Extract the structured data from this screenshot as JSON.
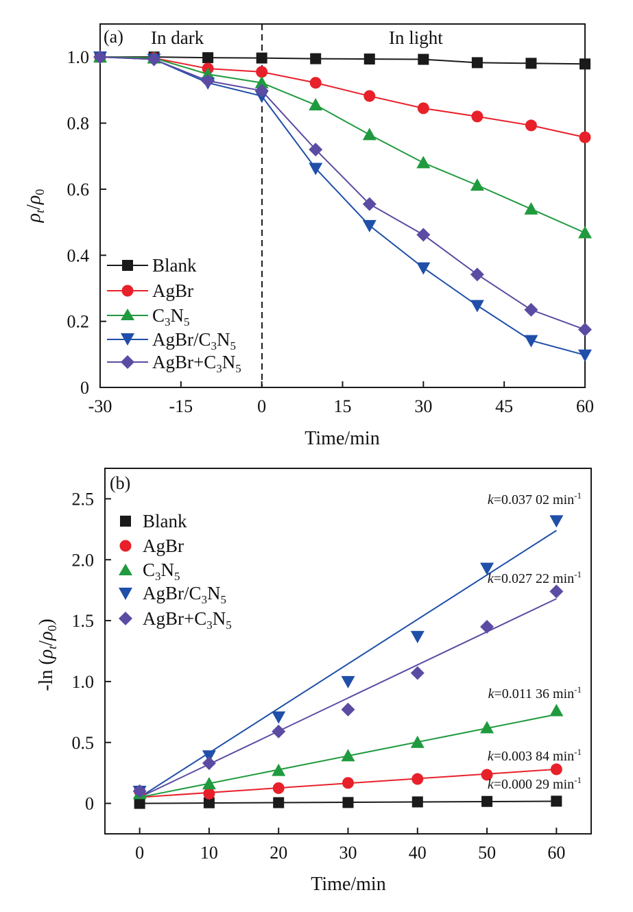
{
  "colors": {
    "Blank": "#1a1a1a",
    "AgBr": "#e8202a",
    "C3N5": "#1f9a3e",
    "AgBr/C3N5": "#1f4fa8",
    "AgBr+C3N5": "#5b4ba3"
  },
  "chart_data": [
    {
      "type": "line",
      "panel_label": "(a)",
      "xlabel": "Time/min",
      "ylabel": "ρt/ρ0",
      "xlim": [
        -30,
        60
      ],
      "ylim": [
        0,
        1.1
      ],
      "xticks": [
        -30,
        -15,
        0,
        15,
        30,
        45,
        60
      ],
      "xticklabels": [
        "-30",
        "-15",
        "0",
        "15",
        "30",
        "45",
        "60"
      ],
      "yticks": [
        0,
        0.2,
        0.4,
        0.6,
        0.8,
        1.0
      ],
      "yticklabels": [
        "0",
        "0.2",
        "0.4",
        "0.6",
        "0.8",
        "1.0"
      ],
      "region_labels": [
        "In dark",
        "In light"
      ],
      "divider_x": 0,
      "legend_position": "bottom-left",
      "x": [
        -30,
        -20,
        -10,
        0,
        10,
        20,
        30,
        40,
        50,
        60
      ],
      "series": [
        {
          "name": "Blank",
          "marker": "square",
          "values": [
            1.0,
            1.0,
            0.998,
            0.997,
            0.995,
            0.994,
            0.993,
            0.983,
            0.981,
            0.979
          ]
        },
        {
          "name": "AgBr",
          "marker": "circle",
          "values": [
            1.0,
            0.997,
            0.965,
            0.955,
            0.922,
            0.882,
            0.845,
            0.82,
            0.793,
            0.757
          ]
        },
        {
          "name": "C3N5",
          "marker": "triangle-up",
          "values": [
            1.0,
            0.997,
            0.948,
            0.922,
            0.855,
            0.765,
            0.68,
            0.612,
            0.54,
            0.468
          ]
        },
        {
          "name": "AgBr/C3N5",
          "marker": "triangle-down",
          "values": [
            1.0,
            0.993,
            0.922,
            0.882,
            0.663,
            0.49,
            0.362,
            0.248,
            0.142,
            0.098
          ]
        },
        {
          "name": "AgBr+C3N5",
          "marker": "diamond",
          "values": [
            1.0,
            0.993,
            0.928,
            0.898,
            0.72,
            0.555,
            0.462,
            0.342,
            0.235,
            0.175
          ]
        }
      ]
    },
    {
      "type": "scatter",
      "panel_label": "(b)",
      "xlabel": "Time/min",
      "ylabel": "-ln (ρt/ρ0)",
      "xlim": [
        -5,
        65
      ],
      "ylim": [
        -0.25,
        2.75
      ],
      "xticks": [
        0,
        10,
        20,
        30,
        40,
        50,
        60
      ],
      "xticklabels": [
        "0",
        "10",
        "20",
        "30",
        "40",
        "50",
        "60"
      ],
      "yticks": [
        0,
        0.5,
        1.0,
        1.5,
        2.0,
        2.5
      ],
      "yticklabels": [
        "0",
        "0.5",
        "1.0",
        "1.5",
        "2.0",
        "2.5"
      ],
      "legend_position": "top-left",
      "x": [
        0,
        10,
        20,
        30,
        40,
        50,
        60
      ],
      "series": [
        {
          "name": "Blank",
          "marker": "square",
          "values": [
            0.0,
            0.005,
            0.006,
            0.007,
            0.012,
            0.016,
            0.018
          ],
          "fit": [
            0.0,
            0.0174
          ],
          "k_label": "0.000 29 min"
        },
        {
          "name": "AgBr",
          "marker": "circle",
          "values": [
            0.1,
            0.08,
            0.125,
            0.168,
            0.2,
            0.235,
            0.28
          ],
          "fit": [
            0.05,
            0.28
          ],
          "k_label": "0.003 84 min"
        },
        {
          "name": "C3N5",
          "marker": "triangle-up",
          "values": [
            0.08,
            0.16,
            0.27,
            0.39,
            0.5,
            0.62,
            0.76
          ],
          "fit": [
            0.05,
            0.73
          ],
          "k_label": "0.011 36 min"
        },
        {
          "name": "AgBr/C3N5",
          "marker": "triangle-down",
          "values": [
            0.1,
            0.39,
            0.71,
            1.0,
            1.37,
            1.93,
            2.32
          ],
          "fit": [
            0.05,
            2.24
          ],
          "k_label": "0.037 02 min"
        },
        {
          "name": "AgBr+C3N5",
          "marker": "diamond",
          "values": [
            0.1,
            0.33,
            0.59,
            0.77,
            1.07,
            1.45,
            1.74
          ],
          "fit": [
            0.05,
            1.68
          ],
          "k_label": "0.027 22 min"
        }
      ]
    }
  ]
}
